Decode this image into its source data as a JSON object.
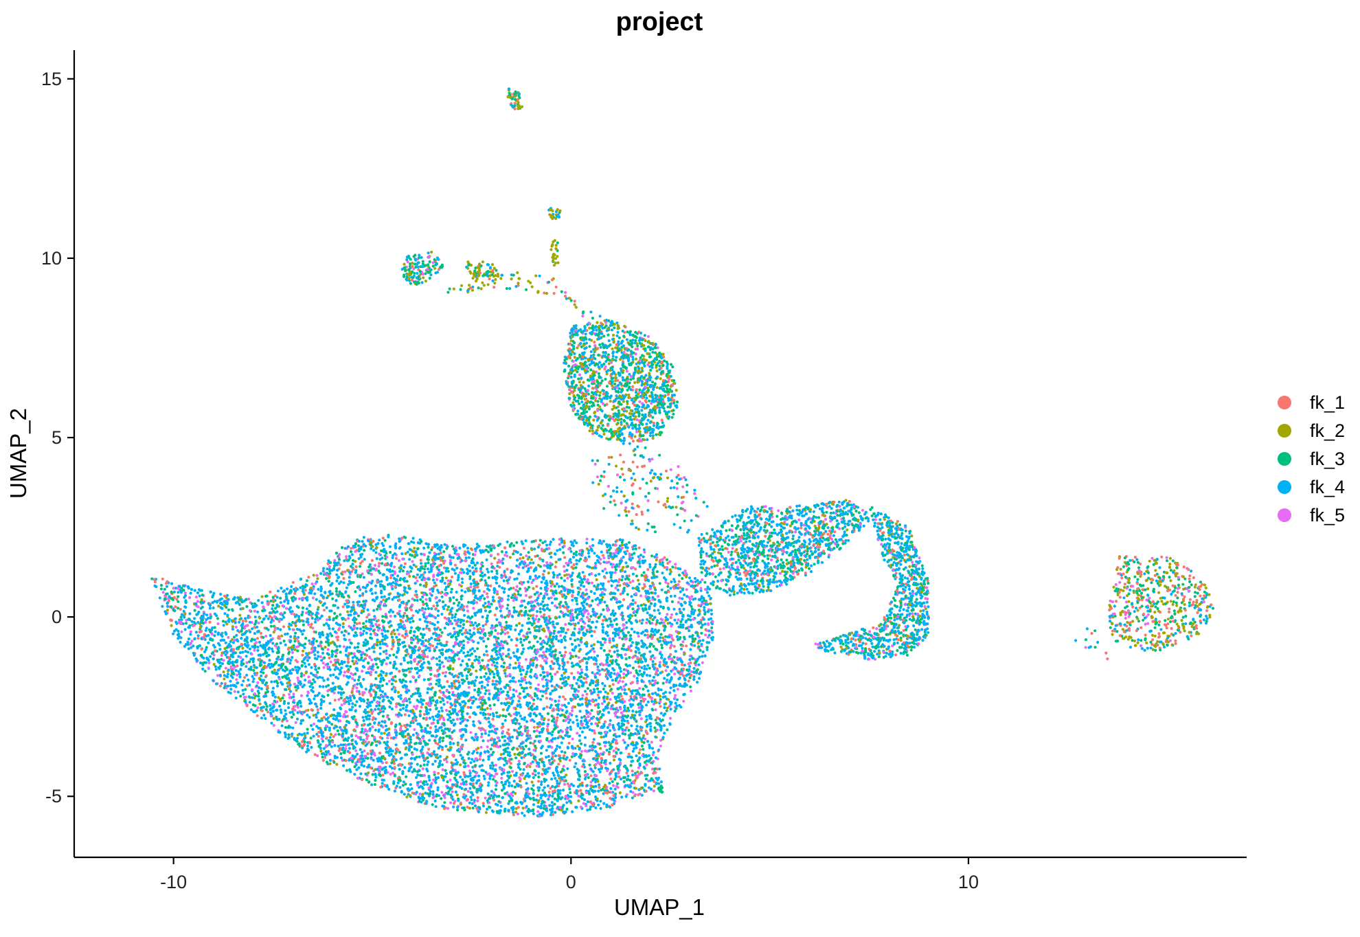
{
  "chart_data": {
    "type": "scatter",
    "title": "project",
    "xlabel": "UMAP_1",
    "ylabel": "UMAP_2",
    "xlim": [
      -12.5,
      17
    ],
    "ylim": [
      -6.7,
      15.8
    ],
    "x_ticks": [
      -10,
      0,
      10
    ],
    "y_ticks": [
      -5,
      0,
      5,
      10,
      15
    ],
    "x_tick_labels": [
      "-10",
      "0",
      "10"
    ],
    "y_tick_labels": [
      "-5",
      "0",
      "5",
      "10",
      "15"
    ],
    "grid": false,
    "legend_position": "right",
    "series": [
      {
        "name": "fk_1",
        "color": "#F8766D",
        "weight": 0.1
      },
      {
        "name": "fk_2",
        "color": "#A3A500",
        "weight": 0.08
      },
      {
        "name": "fk_3",
        "color": "#00BF7D",
        "weight": 0.2
      },
      {
        "name": "fk_4",
        "color": "#00B0F6",
        "weight": 0.5
      },
      {
        "name": "fk_5",
        "color": "#E76BF3",
        "weight": 0.12
      }
    ],
    "clusters": [
      {
        "name": "main-mass",
        "polygon": [
          [
            -10.6,
            1.2
          ],
          [
            -9.5,
            0.8
          ],
          [
            -8,
            0.5
          ],
          [
            -6.5,
            1.2
          ],
          [
            -5.5,
            2.2
          ],
          [
            -4.5,
            2.3
          ],
          [
            -3,
            2.0
          ],
          [
            -1.5,
            2.1
          ],
          [
            0,
            2.2
          ],
          [
            1.2,
            2.2
          ],
          [
            2.5,
            1.6
          ],
          [
            3.5,
            0.8
          ],
          [
            3.6,
            -0.5
          ],
          [
            3.2,
            -1.8
          ],
          [
            2.6,
            -2.8
          ],
          [
            2.2,
            -3.8
          ],
          [
            2.3,
            -4.8
          ],
          [
            1,
            -5.3
          ],
          [
            -0.8,
            -5.6
          ],
          [
            -2,
            -5.5
          ],
          [
            -3.5,
            -5.3
          ],
          [
            -5,
            -4.7
          ],
          [
            -6.5,
            -3.9
          ],
          [
            -7.5,
            -3.1
          ],
          [
            -9,
            -1.8
          ],
          [
            -10,
            -0.5
          ]
        ],
        "count": 9000,
        "weights": [
          0.09,
          0.05,
          0.18,
          0.54,
          0.14
        ]
      },
      {
        "name": "upper-blob",
        "polygon": [
          [
            0,
            8.1
          ],
          [
            1,
            8.3
          ],
          [
            2,
            7.8
          ],
          [
            2.6,
            7.0
          ],
          [
            2.7,
            5.8
          ],
          [
            2.2,
            5.0
          ],
          [
            1.4,
            4.8
          ],
          [
            0.5,
            5.1
          ],
          [
            0,
            5.8
          ],
          [
            -0.2,
            7.0
          ]
        ],
        "count": 1400,
        "weights": [
          0.08,
          0.18,
          0.34,
          0.34,
          0.06
        ]
      },
      {
        "name": "neck-sparse",
        "polygon": [
          [
            1.5,
            5.0
          ],
          [
            2.8,
            4.2
          ],
          [
            3.5,
            3.2
          ],
          [
            3.3,
            2.3
          ],
          [
            1.8,
            2.3
          ],
          [
            0.8,
            3.0
          ],
          [
            0.3,
            4.3
          ]
        ],
        "count": 160,
        "weights": [
          0.2,
          0.15,
          0.2,
          0.35,
          0.1
        ]
      },
      {
        "name": "crescent-bridge",
        "polygon": [
          [
            3.2,
            2.2
          ],
          [
            4.5,
            3.1
          ],
          [
            6,
            3.1
          ],
          [
            7,
            3.3
          ],
          [
            7.6,
            2.8
          ],
          [
            7.0,
            2.1
          ],
          [
            6,
            1.2
          ],
          [
            5,
            0.7
          ],
          [
            4,
            0.6
          ],
          [
            3.3,
            1.0
          ]
        ],
        "count": 1200,
        "weights": [
          0.08,
          0.07,
          0.25,
          0.52,
          0.08
        ]
      },
      {
        "name": "crescent-right",
        "polygon": [
          [
            7.5,
            3.1
          ],
          [
            8.5,
            2.5
          ],
          [
            9.0,
            1.0
          ],
          [
            9.0,
            -0.5
          ],
          [
            8.5,
            -1.1
          ],
          [
            7.5,
            -1.2
          ],
          [
            6.5,
            -1.0
          ],
          [
            6.0,
            -0.8
          ],
          [
            6.8,
            -0.5
          ],
          [
            7.8,
            -0.2
          ],
          [
            8.2,
            0.8
          ],
          [
            7.8,
            1.8
          ]
        ],
        "count": 900,
        "weights": [
          0.07,
          0.07,
          0.27,
          0.52,
          0.07
        ]
      },
      {
        "name": "right-cluster",
        "polygon": [
          [
            13.8,
            1.7
          ],
          [
            15.0,
            1.7
          ],
          [
            15.9,
            1.1
          ],
          [
            16.2,
            0.2
          ],
          [
            15.8,
            -0.5
          ],
          [
            15.0,
            -0.9
          ],
          [
            14.2,
            -1.0
          ],
          [
            13.6,
            -0.6
          ],
          [
            13.5,
            0.5
          ]
        ],
        "count": 550,
        "weights": [
          0.22,
          0.27,
          0.27,
          0.17,
          0.07
        ]
      },
      {
        "name": "top-island-1",
        "polygon": [
          [
            -1.6,
            14.8
          ],
          [
            -1.3,
            14.6
          ],
          [
            -1.2,
            14.2
          ],
          [
            -1.4,
            14.1
          ],
          [
            -1.6,
            14.4
          ]
        ],
        "count": 55,
        "weights": [
          0.1,
          0.35,
          0.35,
          0.2,
          0.0
        ]
      },
      {
        "name": "top-island-2",
        "polygon": [
          [
            -0.6,
            11.4
          ],
          [
            -0.3,
            11.4
          ],
          [
            -0.2,
            11.1
          ],
          [
            -0.5,
            11.1
          ]
        ],
        "count": 22,
        "weights": [
          0.0,
          0.5,
          0.3,
          0.2,
          0.0
        ]
      },
      {
        "name": "upper-left-blob",
        "polygon": [
          [
            -4.1,
            10.1
          ],
          [
            -3.5,
            10.2
          ],
          [
            -3.2,
            9.8
          ],
          [
            -3.5,
            9.4
          ],
          [
            -4.0,
            9.2
          ],
          [
            -4.3,
            9.6
          ]
        ],
        "count": 130,
        "weights": [
          0.1,
          0.1,
          0.42,
          0.3,
          0.08
        ]
      },
      {
        "name": "upper-mid-blob",
        "polygon": [
          [
            -2.7,
            9.9
          ],
          [
            -2.0,
            9.9
          ],
          [
            -1.8,
            9.5
          ],
          [
            -2.5,
            9.4
          ]
        ],
        "count": 60,
        "weights": [
          0.05,
          0.55,
          0.3,
          0.1,
          0.0
        ]
      },
      {
        "name": "upper-arc",
        "polygon": [
          [
            -3.2,
            9.2
          ],
          [
            -1.5,
            9.6
          ],
          [
            -0.5,
            9.6
          ],
          [
            0.2,
            8.7
          ],
          [
            0.8,
            8.4
          ],
          [
            0.5,
            8.2
          ],
          [
            -0.5,
            9.0
          ],
          [
            -2.0,
            9.2
          ],
          [
            -3.2,
            8.9
          ]
        ],
        "count": 70,
        "weights": [
          0.15,
          0.35,
          0.25,
          0.2,
          0.05
        ]
      },
      {
        "name": "thread-column",
        "polygon": [
          [
            -0.5,
            10.5
          ],
          [
            -0.3,
            10.5
          ],
          [
            -0.3,
            9.8
          ],
          [
            -0.5,
            9.8
          ]
        ],
        "count": 25,
        "weights": [
          0.0,
          0.8,
          0.1,
          0.1,
          0.0
        ]
      },
      {
        "name": "small-bottom-tail",
        "polygon": [
          [
            2.2,
            -4.7
          ],
          [
            2.3,
            -4.7
          ],
          [
            2.3,
            -4.9
          ],
          [
            2.2,
            -4.9
          ]
        ],
        "count": 12,
        "weights": [
          0.0,
          0.0,
          0.8,
          0.2,
          0.0
        ]
      },
      {
        "name": "right-stragglers",
        "polygon": [
          [
            12.6,
            -0.3
          ],
          [
            13.5,
            -0.3
          ],
          [
            13.5,
            -1.2
          ],
          [
            12.6,
            -1.2
          ]
        ],
        "count": 12,
        "weights": [
          0.2,
          0.0,
          0.2,
          0.4,
          0.2
        ]
      }
    ]
  }
}
